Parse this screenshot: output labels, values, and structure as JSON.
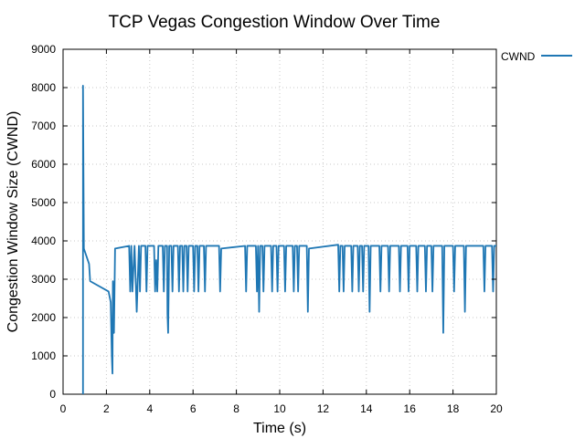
{
  "chart_data": {
    "type": "line",
    "title": "TCP Vegas Congestion Window Over Time",
    "xlabel": "Time (s)",
    "ylabel": "Congestion Window Size (CWND)",
    "xlim": [
      0,
      20
    ],
    "ylim": [
      0,
      9000
    ],
    "xticks": [
      0,
      2,
      4,
      6,
      8,
      10,
      12,
      14,
      16,
      18,
      20
    ],
    "yticks": [
      0,
      1000,
      2000,
      3000,
      4000,
      5000,
      6000,
      7000,
      8000,
      9000
    ],
    "grid": true,
    "legend_position": "outside-top-right",
    "series": [
      {
        "name": "CWND",
        "color": "#1f77b4",
        "points": [
          [
            0.92,
            0
          ],
          [
            0.92,
            8050
          ],
          [
            0.96,
            3800
          ],
          [
            1.2,
            3400
          ],
          [
            1.25,
            2950
          ],
          [
            2.1,
            2680
          ],
          [
            2.2,
            2400
          ],
          [
            2.25,
            1000
          ],
          [
            2.28,
            540
          ],
          [
            2.3,
            2950
          ],
          [
            2.35,
            1600
          ],
          [
            2.4,
            3800
          ],
          [
            3.05,
            3870
          ],
          [
            3.1,
            2680
          ],
          [
            3.15,
            3870
          ],
          [
            3.2,
            2680
          ],
          [
            3.3,
            3870
          ],
          [
            3.4,
            2150
          ],
          [
            3.5,
            3870
          ],
          [
            3.55,
            2680
          ],
          [
            3.6,
            3870
          ],
          [
            3.8,
            3870
          ],
          [
            3.85,
            2680
          ],
          [
            3.9,
            3870
          ],
          [
            4.2,
            3870
          ],
          [
            4.25,
            2680
          ],
          [
            4.3,
            3500
          ],
          [
            4.35,
            2680
          ],
          [
            4.4,
            3870
          ],
          [
            4.6,
            3870
          ],
          [
            4.65,
            2680
          ],
          [
            4.7,
            3870
          ],
          [
            4.8,
            3870
          ],
          [
            4.82,
            2100
          ],
          [
            4.85,
            1600
          ],
          [
            4.9,
            3870
          ],
          [
            5.0,
            3870
          ],
          [
            5.05,
            2680
          ],
          [
            5.1,
            3870
          ],
          [
            5.3,
            3870
          ],
          [
            5.35,
            2680
          ],
          [
            5.4,
            3870
          ],
          [
            5.5,
            3870
          ],
          [
            5.55,
            2680
          ],
          [
            5.6,
            3870
          ],
          [
            5.7,
            3870
          ],
          [
            5.75,
            2680
          ],
          [
            5.8,
            3870
          ],
          [
            6.0,
            3870
          ],
          [
            6.05,
            2680
          ],
          [
            6.1,
            3870
          ],
          [
            6.2,
            3870
          ],
          [
            6.25,
            2680
          ],
          [
            6.3,
            3870
          ],
          [
            6.5,
            3870
          ],
          [
            6.55,
            2680
          ],
          [
            6.6,
            3870
          ],
          [
            7.2,
            3870
          ],
          [
            7.25,
            2680
          ],
          [
            7.3,
            3800
          ],
          [
            8.4,
            3870
          ],
          [
            8.45,
            2680
          ],
          [
            8.5,
            3870
          ],
          [
            8.9,
            3870
          ],
          [
            8.95,
            2680
          ],
          [
            9.0,
            3870
          ],
          [
            9.05,
            2150
          ],
          [
            9.1,
            3870
          ],
          [
            9.2,
            3870
          ],
          [
            9.25,
            2680
          ],
          [
            9.3,
            3870
          ],
          [
            9.6,
            3870
          ],
          [
            9.65,
            2680
          ],
          [
            9.7,
            3870
          ],
          [
            9.85,
            3870
          ],
          [
            9.9,
            2680
          ],
          [
            9.95,
            3870
          ],
          [
            10.2,
            3870
          ],
          [
            10.25,
            2680
          ],
          [
            10.3,
            3870
          ],
          [
            10.6,
            3870
          ],
          [
            10.65,
            2680
          ],
          [
            10.7,
            3870
          ],
          [
            10.8,
            3870
          ],
          [
            10.85,
            2680
          ],
          [
            10.9,
            3870
          ],
          [
            11.25,
            3870
          ],
          [
            11.3,
            2150
          ],
          [
            11.35,
            3800
          ],
          [
            12.7,
            3900
          ],
          [
            12.75,
            2680
          ],
          [
            12.8,
            3870
          ],
          [
            12.9,
            3870
          ],
          [
            12.95,
            2680
          ],
          [
            13.0,
            3870
          ],
          [
            13.3,
            3870
          ],
          [
            13.35,
            2680
          ],
          [
            13.4,
            3870
          ],
          [
            13.6,
            3870
          ],
          [
            13.65,
            2680
          ],
          [
            13.7,
            3870
          ],
          [
            13.8,
            3870
          ],
          [
            13.85,
            2680
          ],
          [
            13.9,
            3870
          ],
          [
            14.1,
            3870
          ],
          [
            14.15,
            2150
          ],
          [
            14.2,
            3870
          ],
          [
            14.6,
            3870
          ],
          [
            14.65,
            2680
          ],
          [
            14.7,
            3870
          ],
          [
            15.0,
            3870
          ],
          [
            15.05,
            2680
          ],
          [
            15.1,
            3870
          ],
          [
            15.5,
            3870
          ],
          [
            15.55,
            2680
          ],
          [
            15.6,
            3870
          ],
          [
            15.9,
            3870
          ],
          [
            15.95,
            2680
          ],
          [
            16.0,
            3870
          ],
          [
            16.3,
            3870
          ],
          [
            16.35,
            2680
          ],
          [
            16.4,
            3870
          ],
          [
            16.7,
            3870
          ],
          [
            16.75,
            2680
          ],
          [
            16.8,
            3870
          ],
          [
            17.0,
            3870
          ],
          [
            17.05,
            2680
          ],
          [
            17.1,
            3870
          ],
          [
            17.5,
            3870
          ],
          [
            17.55,
            1600
          ],
          [
            17.6,
            3870
          ],
          [
            18.0,
            3870
          ],
          [
            18.05,
            2680
          ],
          [
            18.1,
            3870
          ],
          [
            18.5,
            3870
          ],
          [
            18.55,
            2150
          ],
          [
            18.6,
            3870
          ],
          [
            19.4,
            3870
          ],
          [
            19.45,
            2680
          ],
          [
            19.5,
            3870
          ],
          [
            19.8,
            3870
          ],
          [
            19.85,
            2680
          ],
          [
            19.9,
            3870
          ],
          [
            20.0,
            3870
          ]
        ]
      }
    ]
  }
}
